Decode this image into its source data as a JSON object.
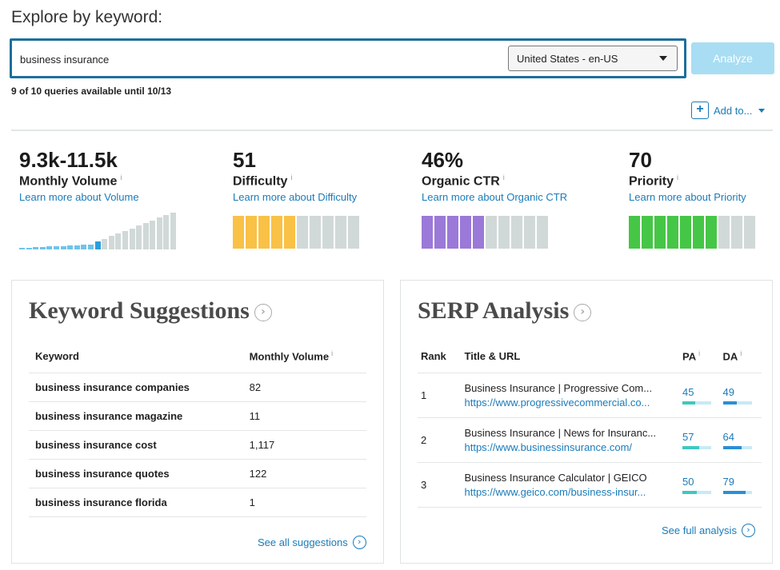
{
  "page": {
    "title": "Explore by keyword:"
  },
  "search": {
    "query": "business insurance",
    "country": "United States - en-US",
    "analyze_label": "Analyze"
  },
  "quota": {
    "text": "9 of 10 queries available until 10/13"
  },
  "add_to": {
    "label": "Add to..."
  },
  "metrics": [
    {
      "value": "9.3k-11.5k",
      "label": "Monthly Volume",
      "link": "Learn more about Volume"
    },
    {
      "value": "51",
      "label": "Difficulty",
      "link": "Learn more about Difficulty",
      "filled": 5,
      "total": 10,
      "color": "#f9c146"
    },
    {
      "value": "46%",
      "label": "Organic CTR",
      "link": "Learn more about Organic CTR",
      "filled": 5,
      "total": 10,
      "color": "#9b79d8"
    },
    {
      "value": "70",
      "label": "Priority",
      "link": "Learn more about Priority",
      "filled": 7,
      "total": 10,
      "color": "#46c646"
    }
  ],
  "volume_bars": {
    "total": 23,
    "highlighted_index": 11,
    "highlight_color": "#2a9fdb",
    "light_color": "#6fc3ea"
  },
  "keyword_suggestions": {
    "title": "Keyword Suggestions",
    "headers": {
      "keyword": "Keyword",
      "volume": "Monthly Volume"
    },
    "rows": [
      {
        "keyword": "business insurance companies",
        "volume": "82"
      },
      {
        "keyword": "business insurance magazine",
        "volume": "11"
      },
      {
        "keyword": "business insurance cost",
        "volume": "1,117"
      },
      {
        "keyword": "business insurance quotes",
        "volume": "122"
      },
      {
        "keyword": "business insurance florida",
        "volume": "1"
      }
    ],
    "see_all": "See all suggestions"
  },
  "serp": {
    "title": "SERP Analysis",
    "headers": {
      "rank": "Rank",
      "title_url": "Title & URL",
      "pa": "PA",
      "da": "DA"
    },
    "rows": [
      {
        "rank": "1",
        "title": "Business Insurance | Progressive Com...",
        "url": "https://www.progressivecommercial.co...",
        "pa": "45",
        "da": "49"
      },
      {
        "rank": "2",
        "title": "Business Insurance | News for Insuranc...",
        "url": "https://www.businessinsurance.com/",
        "pa": "57",
        "da": "64"
      },
      {
        "rank": "3",
        "title": "Business Insurance Calculator | GEICO",
        "url": "https://www.geico.com/business-insur...",
        "pa": "50",
        "da": "79"
      }
    ],
    "pa_color": "#3ec9c0",
    "da_color": "#2a8fd6",
    "see_full": "See full analysis"
  }
}
